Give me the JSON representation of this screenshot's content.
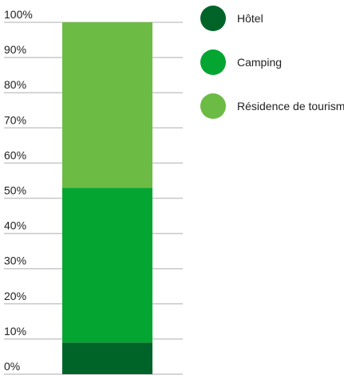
{
  "chart_data": {
    "type": "bar",
    "stacked": true,
    "percent_axis": true,
    "ylim": [
      0,
      100
    ],
    "yticks": [
      "0%",
      "10%",
      "20%",
      "30%",
      "40%",
      "50%",
      "60%",
      "70%",
      "80%",
      "90%",
      "100%"
    ],
    "grid": true,
    "legend_position": "right",
    "title": "",
    "xlabel": "",
    "ylabel": "",
    "categories": [
      ""
    ],
    "series": [
      {
        "name": "Hôtel",
        "values": [
          9
        ],
        "color": "#006428"
      },
      {
        "name": "Camping",
        "values": [
          44
        ],
        "color": "#05a532"
      },
      {
        "name": "Résidence de tourisme",
        "values": [
          47
        ],
        "color": "#6cbb44"
      }
    ],
    "gridline_color": "#c8c8c8"
  }
}
